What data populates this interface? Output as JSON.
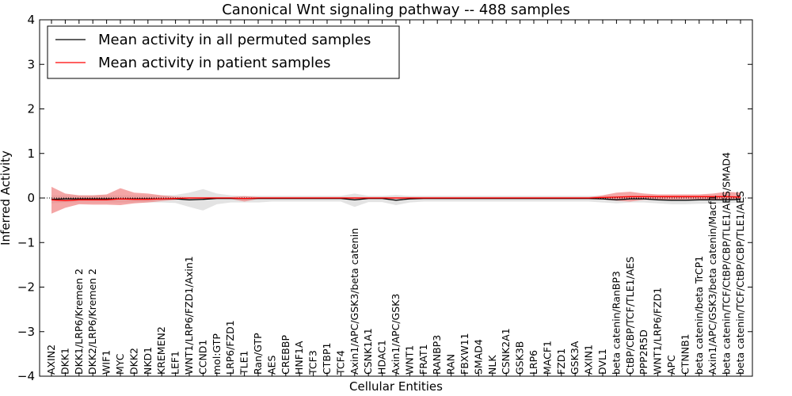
{
  "chart_data": {
    "type": "line",
    "title": "Canonical Wnt signaling pathway -- 488 samples",
    "xlabel": "Cellular Entities",
    "ylabel": "Inferred Activity",
    "ylim": [
      -4,
      4
    ],
    "yticks": [
      -4,
      -3,
      -2,
      -1,
      0,
      1,
      2,
      3,
      4
    ],
    "ytick_labels": [
      "−4",
      "−3",
      "−2",
      "−1",
      "0",
      "1",
      "2",
      "3",
      "4"
    ],
    "legend_position": "top-left",
    "categories": [
      "AXIN2",
      "DKK1",
      "DKK1/LRP6/Kremen 2",
      "DKK2/LRP6/Kremen 2",
      "WIF1",
      "MYC",
      "DKK2",
      "NKD1",
      "KREMEN2",
      "LEF1",
      "WNT1/LRP6/FZD1/Axin1",
      "CCND1",
      "mol:GTP",
      "LRP6/FZD1",
      "TLE1",
      "Ran/GTP",
      "AES",
      "CREBBP",
      "HNF1A",
      "TCF3",
      "CTBP1",
      "TCF4",
      "Axin1/APC/GSK3/beta catenin",
      "CSNK1A1",
      "HDAC1",
      "Axin1/APC/GSK3",
      "WNT1",
      "FRAT1",
      "RANBP3",
      "RAN",
      "FBXW11",
      "SMAD4",
      "NLK",
      "CSNK2A1",
      "GSK3B",
      "LRP6",
      "MACF1",
      "FZD1",
      "GSK3A",
      "AXIN1",
      "DVL1",
      "beta catenin/RanBP3",
      "CtBP/CBP/TCF/TLE1/AES",
      "PPP2R5D",
      "WNT1/LRP6/FZD1",
      "APC",
      "CTNNB1",
      "beta catenin/beta TrCP1",
      "Axin1/APC/GSK3/beta catenin/Macf1",
      "beta catenin/TCF/CtBP/CBP/TLE1/AES/SMAD4",
      "beta catenin/TCF/CtBP/CBP/TLE1/AES"
    ],
    "series": [
      {
        "name": "Mean activity in all permuted samples",
        "color": "#000000",
        "band_color": "#cccccc",
        "values": [
          -0.03,
          -0.02,
          -0.02,
          -0.02,
          -0.02,
          -0.02,
          -0.02,
          -0.02,
          -0.02,
          -0.02,
          -0.04,
          -0.03,
          -0.01,
          -0.01,
          -0.01,
          -0.01,
          -0.01,
          -0.01,
          -0.01,
          -0.01,
          -0.01,
          -0.01,
          -0.04,
          -0.01,
          -0.01,
          -0.05,
          -0.02,
          -0.01,
          -0.01,
          -0.01,
          -0.01,
          -0.01,
          -0.01,
          -0.01,
          -0.01,
          -0.01,
          -0.01,
          -0.01,
          -0.01,
          -0.01,
          -0.02,
          -0.04,
          -0.02,
          -0.02,
          -0.04,
          -0.05,
          -0.05,
          -0.04,
          -0.04,
          -0.04,
          -0.03
        ],
        "band_lower": [
          -0.12,
          -0.1,
          -0.1,
          -0.1,
          -0.1,
          -0.1,
          -0.1,
          -0.1,
          -0.1,
          -0.11,
          -0.2,
          -0.28,
          -0.14,
          -0.1,
          -0.1,
          -0.1,
          -0.08,
          -0.08,
          -0.08,
          -0.08,
          -0.08,
          -0.08,
          -0.2,
          -0.09,
          -0.09,
          -0.16,
          -0.1,
          -0.08,
          -0.08,
          -0.08,
          -0.08,
          -0.08,
          -0.08,
          -0.08,
          -0.08,
          -0.08,
          -0.08,
          -0.08,
          -0.08,
          -0.08,
          -0.1,
          -0.12,
          -0.1,
          -0.1,
          -0.12,
          -0.14,
          -0.14,
          -0.13,
          -0.12,
          -0.12,
          -0.1
        ],
        "band_upper": [
          0.06,
          0.06,
          0.06,
          0.06,
          0.06,
          0.06,
          0.06,
          0.06,
          0.06,
          0.07,
          0.12,
          0.2,
          0.1,
          0.06,
          0.05,
          0.05,
          0.05,
          0.05,
          0.05,
          0.05,
          0.05,
          0.05,
          0.1,
          0.05,
          0.05,
          0.07,
          0.05,
          0.05,
          0.05,
          0.05,
          0.05,
          0.05,
          0.05,
          0.05,
          0.05,
          0.05,
          0.05,
          0.05,
          0.05,
          0.05,
          0.05,
          0.05,
          0.05,
          0.05,
          0.05,
          0.05,
          0.05,
          0.05,
          0.05,
          0.05,
          0.05
        ]
      },
      {
        "name": "Mean activity in patient samples",
        "color": "#ff0000",
        "band_color": "#f08080",
        "values": [
          -0.04,
          -0.06,
          -0.04,
          -0.04,
          -0.04,
          -0.02,
          -0.03,
          -0.03,
          -0.02,
          -0.01,
          0,
          0,
          0,
          0,
          -0.01,
          0,
          0,
          0,
          0,
          0,
          0,
          0,
          0,
          0,
          0,
          0,
          0,
          0,
          0,
          0,
          0,
          0,
          0,
          0,
          0,
          0,
          0,
          0,
          0,
          0,
          0.01,
          0.02,
          0.03,
          0.03,
          0.03,
          0.03,
          0.03,
          0.03,
          0.03,
          0.03,
          0.02
        ],
        "band_lower": [
          -0.35,
          -0.22,
          -0.14,
          -0.15,
          -0.15,
          -0.16,
          -0.12,
          -0.1,
          -0.07,
          -0.04,
          -0.02,
          -0.02,
          -0.02,
          -0.02,
          -0.08,
          -0.02,
          -0.02,
          -0.02,
          -0.02,
          -0.02,
          -0.02,
          -0.02,
          -0.02,
          -0.02,
          -0.02,
          -0.02,
          -0.02,
          -0.02,
          -0.02,
          -0.02,
          -0.02,
          -0.02,
          -0.02,
          -0.02,
          -0.02,
          -0.02,
          -0.02,
          -0.02,
          -0.02,
          -0.02,
          -0.03,
          -0.06,
          -0.08,
          -0.04,
          -0.04,
          -0.04,
          -0.03,
          -0.03,
          -0.04,
          -0.04,
          -0.04
        ],
        "band_upper": [
          0.25,
          0.1,
          0.06,
          0.06,
          0.08,
          0.22,
          0.12,
          0.1,
          0.06,
          0.03,
          0.02,
          0.02,
          0.02,
          0.02,
          0.04,
          0.02,
          0.02,
          0.02,
          0.02,
          0.02,
          0.02,
          0.02,
          0.02,
          0.02,
          0.02,
          0.02,
          0.02,
          0.02,
          0.02,
          0.02,
          0.02,
          0.02,
          0.02,
          0.02,
          0.02,
          0.02,
          0.02,
          0.02,
          0.02,
          0.02,
          0.06,
          0.12,
          0.14,
          0.1,
          0.08,
          0.08,
          0.08,
          0.08,
          0.1,
          0.14,
          0.12
        ]
      }
    ]
  }
}
